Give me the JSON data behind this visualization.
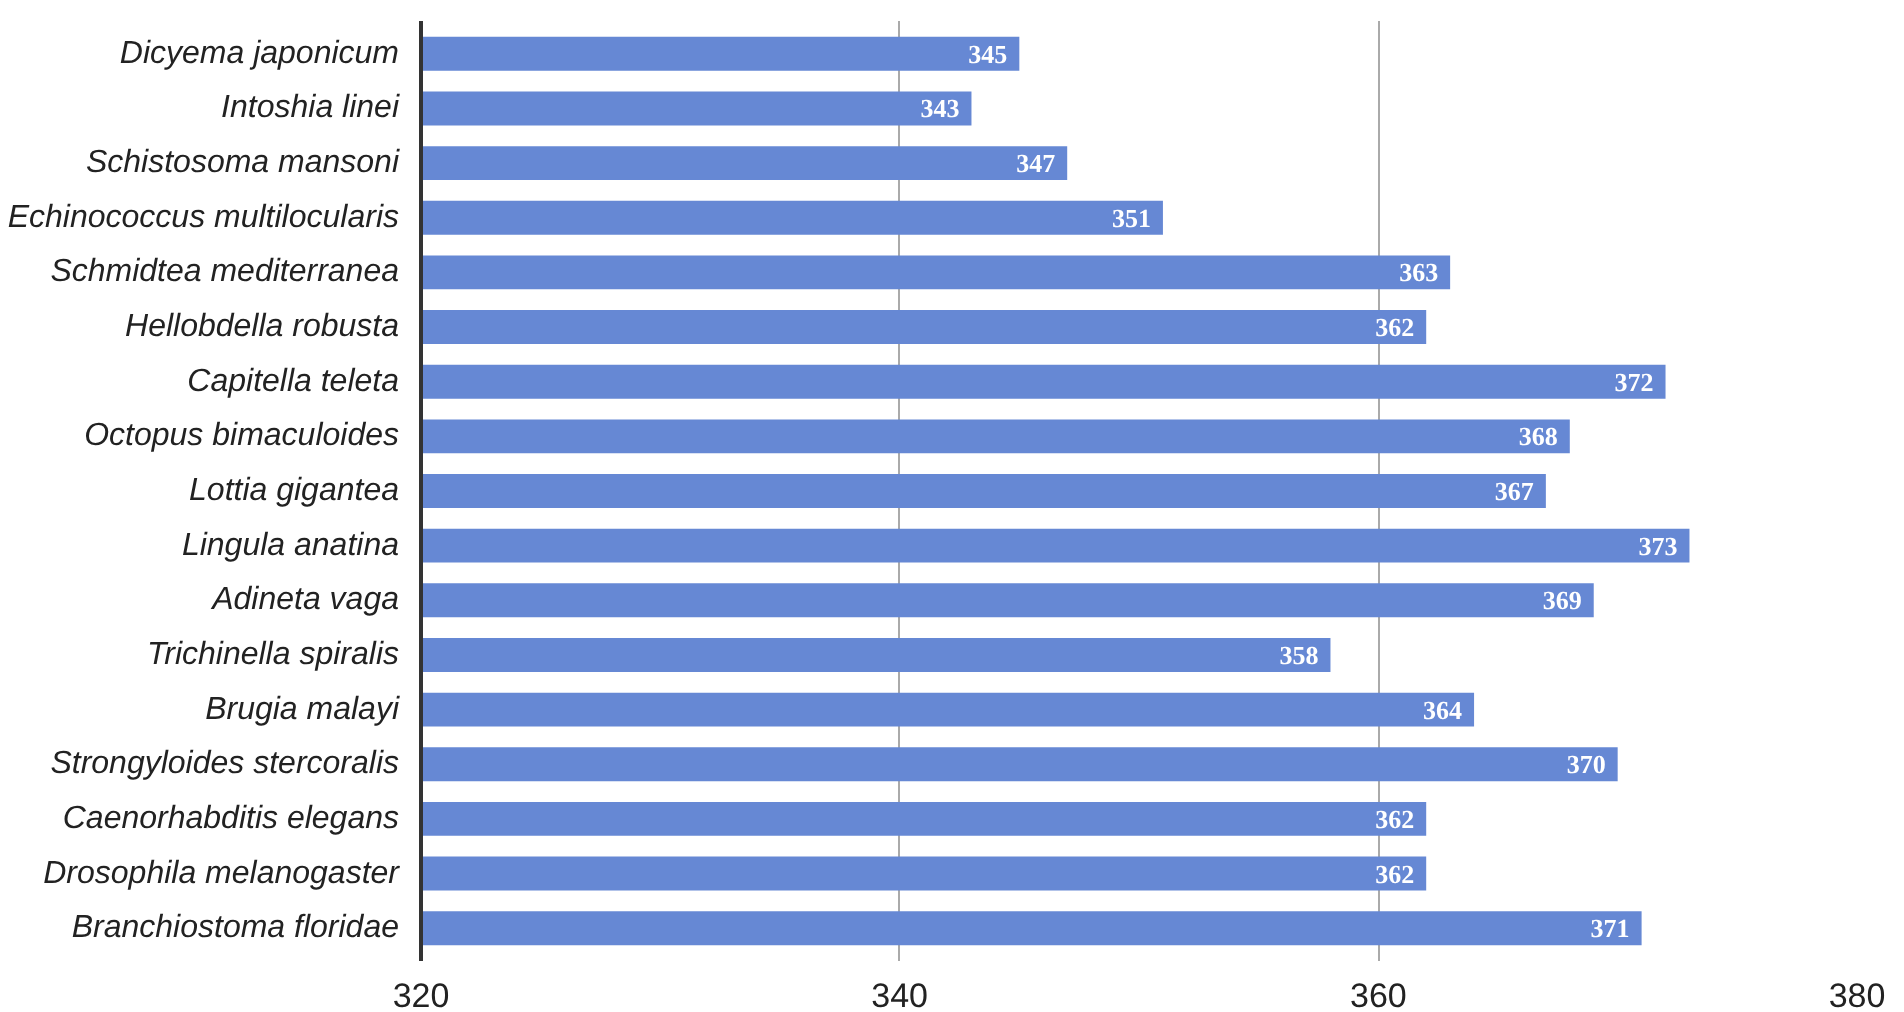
{
  "chart_data": {
    "type": "bar",
    "orientation": "horizontal",
    "categories": [
      "Dicyema japonicum",
      "Intoshia linei",
      "Schistosoma mansoni",
      "Echinococcus multilocularis",
      "Schmidtea mediterranea",
      "Hellobdella robusta",
      "Capitella teleta",
      "Octopus bimaculoides",
      "Lottia gigantea",
      "Lingula anatina",
      "Adineta vaga",
      "Trichinella spiralis",
      "Brugia malayi",
      "Strongyloides stercoralis",
      "Caenorhabditis elegans",
      "Drosophila melanogaster",
      "Branchiostoma floridae"
    ],
    "values": [
      345,
      343,
      347,
      351,
      363,
      362,
      372,
      368,
      367,
      373,
      369,
      358,
      364,
      370,
      362,
      362,
      371
    ],
    "color": "#6688d4",
    "xlim": [
      320,
      380
    ],
    "xticks": [
      320,
      340,
      360,
      380
    ],
    "grid": "x",
    "data_labels": true
  }
}
